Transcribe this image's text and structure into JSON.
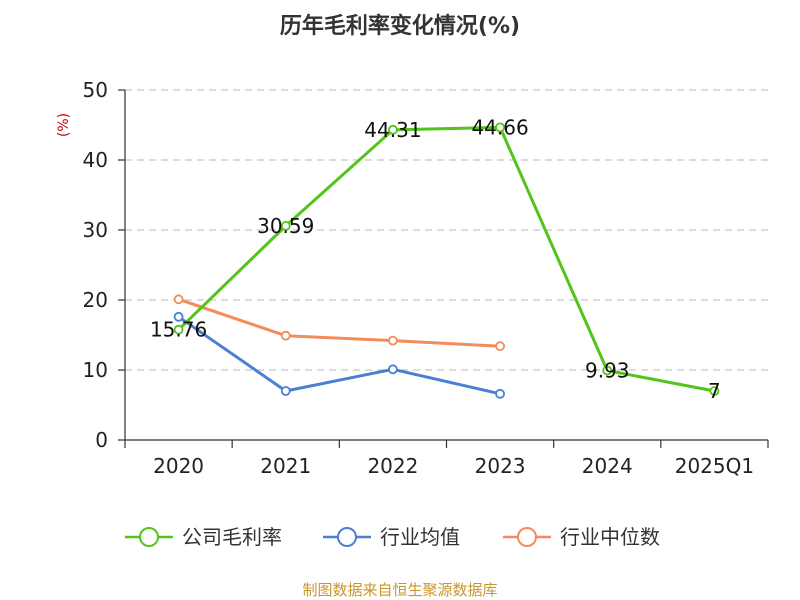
{
  "source_note": "制图数据来自恒生聚源数据库",
  "chart_data": {
    "type": "line",
    "title": "历年毛利率变化情况(%)",
    "ylabel": "(%)",
    "xlabel": "",
    "categories": [
      "2020",
      "2021",
      "2022",
      "2023",
      "2024",
      "2025Q1"
    ],
    "ylim": [
      0,
      50
    ],
    "yticks": [
      0,
      10,
      20,
      30,
      40,
      50
    ],
    "grid": true,
    "legend_position": "bottom",
    "series": [
      {
        "name": "公司毛利率",
        "color": "#52c41a",
        "values": [
          15.76,
          30.59,
          44.31,
          44.66,
          9.93,
          7
        ],
        "labels": [
          "15.76",
          "30.59",
          "44.31",
          "44.66",
          "9.93",
          "7"
        ]
      },
      {
        "name": "行业均值",
        "color": "#4a7fd4",
        "values": [
          17.6,
          7.0,
          10.1,
          6.6,
          null,
          null
        ]
      },
      {
        "name": "行业中位数",
        "color": "#f28c5a",
        "values": [
          20.1,
          14.9,
          14.2,
          13.4,
          null,
          null
        ]
      }
    ]
  }
}
